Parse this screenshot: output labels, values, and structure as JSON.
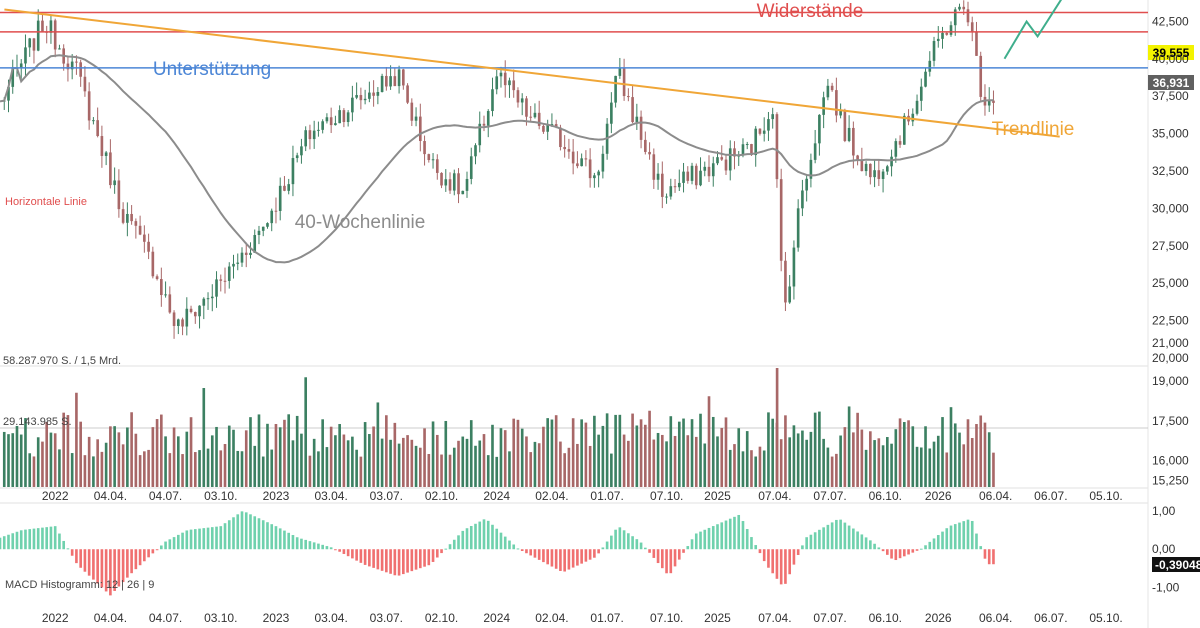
{
  "chart_data": [
    {
      "type": "candlestick",
      "panel": "price",
      "title": "",
      "y_ticks": [
        "42,500",
        "40,000",
        "37,500",
        "35,000",
        "32,500",
        "30,000",
        "27,500",
        "25,000",
        "22,500",
        "21,000",
        "20,000"
      ],
      "y_tick_values": [
        42500,
        40000,
        37500,
        35000,
        32500,
        30000,
        27500,
        25000,
        22500,
        21000,
        20000
      ],
      "ylim": [
        20000,
        43600
      ],
      "x_range": [
        2021.75,
        2026.95
      ],
      "annotations": {
        "resistance_label": "Widerstände",
        "support_label": "Unterstützung",
        "trendline_label": "Trendlinie",
        "ma_label": "40-Wochenlinie",
        "horizontal_label": "Horizontale Linie"
      },
      "levels": {
        "resistance": [
          43100,
          41800
        ],
        "support": 39400,
        "last_price_tag": "39,555",
        "last_price": 39555,
        "ma_tag": "36,931",
        "ma_value": 36931
      },
      "trendline": {
        "x": [
          2021.77,
          2026.55
        ],
        "y": [
          43300,
          34800
        ]
      },
      "forecast_arrow": {
        "x": [
          2026.3,
          2026.4,
          2026.45,
          2026.58
        ],
        "y": [
          40000,
          42500,
          41500,
          44500
        ]
      },
      "colors": {
        "up": "#3c8062",
        "down": "#a86767",
        "ma": "#8c8c8c",
        "resistance": "#e04e4e",
        "support": "#4c86d6",
        "trendline": "#f0a637",
        "price_tag_bg": "#f3f300",
        "ma_tag_bg": "#606060"
      },
      "x_labels": [
        "2022",
        "04.04.",
        "04.07.",
        "03.10.",
        "2023",
        "03.04.",
        "03.07.",
        "02.10.",
        "2024",
        "02.04.",
        "01.07.",
        "07.10.",
        "2025",
        "07.04.",
        "07.07.",
        "06.10.",
        "2026",
        "06.04.",
        "06.07.",
        "05.10."
      ],
      "x_label_values": [
        2022.0,
        2022.25,
        2022.5,
        2022.75,
        2023.0,
        2023.25,
        2023.5,
        2023.75,
        2024.0,
        2024.25,
        2024.5,
        2024.77,
        2025.0,
        2025.26,
        2025.51,
        2025.76,
        2026.0,
        2026.26,
        2026.51,
        2026.76
      ],
      "key_points_x": [
        2021.75,
        2021.95,
        2022.1,
        2022.3,
        2022.45,
        2022.55,
        2022.75,
        2022.95,
        2023.15,
        2023.35,
        2023.55,
        2023.7,
        2023.85,
        2024.0,
        2024.15,
        2024.3,
        2024.45,
        2024.55,
        2024.75,
        2025.0,
        2025.15,
        2025.25,
        2025.3,
        2025.38,
        2025.5,
        2025.58,
        2025.7,
        2025.85,
        2025.95,
        2026.05,
        2026.13,
        2026.2
      ],
      "key_points_y": [
        37000,
        42500,
        39000,
        30000,
        26000,
        22000,
        25000,
        29000,
        35000,
        37000,
        39000,
        33000,
        31000,
        39000,
        36000,
        34500,
        32000,
        39000,
        31000,
        33000,
        34000,
        37000,
        22800,
        31000,
        38500,
        35000,
        32000,
        35500,
        39500,
        42500,
        43500,
        37500
      ],
      "volume": {
        "label_top": "58.287.970 S. / 1,5 Mrd.",
        "label_mid": "29.143.985 S.",
        "y_ticks": [
          "19,000",
          "17,500",
          "16,000",
          "15,250"
        ],
        "y_tick_values": [
          19000,
          17500,
          16000,
          15250
        ]
      }
    },
    {
      "type": "histogram",
      "panel": "macd",
      "label": "MACD Histogramm: 12 | 26 | 9",
      "y_ticks": [
        "1,00",
        "0,00",
        "-1,00"
      ],
      "y_tick_values": [
        1.0,
        0.0,
        -1.0
      ],
      "ylim": [
        -1.45,
        1.15
      ],
      "last_value_tag": "-0,39048",
      "last_value": -0.39048,
      "x_labels": [
        "2022",
        "04.04.",
        "04.07.",
        "03.10.",
        "2023",
        "03.04.",
        "03.07.",
        "02.10.",
        "2024",
        "02.04.",
        "01.07.",
        "07.10.",
        "2025",
        "07.04.",
        "07.07.",
        "06.10.",
        "2026",
        "06.04.",
        "06.07.",
        "05.10."
      ],
      "key_points_x": [
        2021.75,
        2021.85,
        2022.0,
        2022.1,
        2022.25,
        2022.35,
        2022.5,
        2022.6,
        2022.75,
        2022.85,
        2023.0,
        2023.1,
        2023.25,
        2023.4,
        2023.55,
        2023.7,
        2023.85,
        2023.95,
        2024.1,
        2024.3,
        2024.45,
        2024.55,
        2024.65,
        2024.78,
        2024.9,
        2025.1,
        2025.22,
        2025.3,
        2025.4,
        2025.55,
        2025.7,
        2025.8,
        2025.92,
        2026.05,
        2026.15,
        2026.22
      ],
      "key_points_y": [
        0.3,
        0.5,
        0.6,
        -0.4,
        -1.2,
        -0.6,
        0.2,
        0.5,
        0.6,
        1.0,
        0.6,
        0.3,
        0.05,
        -0.4,
        -0.7,
        -0.4,
        0.5,
        0.8,
        0.0,
        -0.6,
        -0.2,
        0.6,
        0.2,
        -0.7,
        0.4,
        0.9,
        -0.4,
        -1.0,
        0.3,
        0.8,
        0.2,
        -0.3,
        0.0,
        0.6,
        0.8,
        -0.39
      ]
    }
  ]
}
